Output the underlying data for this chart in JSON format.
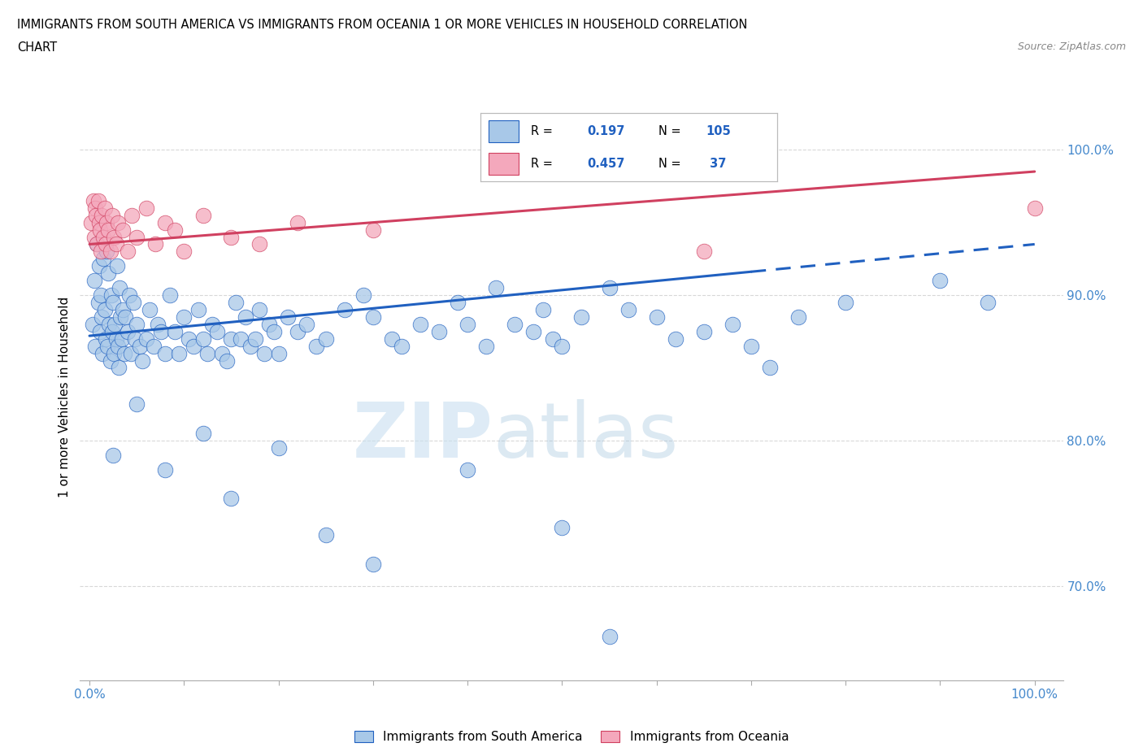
{
  "title_line1": "IMMIGRANTS FROM SOUTH AMERICA VS IMMIGRANTS FROM OCEANIA 1 OR MORE VEHICLES IN HOUSEHOLD CORRELATION",
  "title_line2": "CHART",
  "source": "Source: ZipAtlas.com",
  "ylabel": "1 or more Vehicles in Household",
  "xlim": [
    -1.0,
    103.0
  ],
  "ylim": [
    63.5,
    102.5
  ],
  "yticks": [
    70.0,
    80.0,
    90.0,
    100.0
  ],
  "ytick_labels": [
    "70.0%",
    "80.0%",
    "90.0%",
    "100.0%"
  ],
  "xtick_labels_left": "0.0%",
  "xtick_labels_right": "100.0%",
  "legend_R_blue": "0.197",
  "legend_N_blue": "105",
  "legend_R_pink": "0.457",
  "legend_N_pink": " 37",
  "color_blue": "#a8c8e8",
  "color_pink": "#f4a8bc",
  "trendline_blue": "#2060c0",
  "trendline_pink": "#d04060",
  "watermark_zip": "ZIP",
  "watermark_atlas": "atlas",
  "blue_x": [
    0.3,
    0.5,
    0.6,
    0.8,
    0.9,
    1.0,
    1.1,
    1.2,
    1.3,
    1.4,
    1.5,
    1.6,
    1.7,
    1.8,
    1.9,
    2.0,
    2.1,
    2.2,
    2.3,
    2.4,
    2.5,
    2.6,
    2.7,
    2.8,
    2.9,
    3.0,
    3.1,
    3.2,
    3.3,
    3.4,
    3.5,
    3.7,
    3.8,
    4.0,
    4.2,
    4.4,
    4.6,
    4.8,
    5.0,
    5.3,
    5.6,
    6.0,
    6.4,
    6.8,
    7.2,
    7.6,
    8.0,
    8.5,
    9.0,
    9.5,
    10.0,
    10.5,
    11.0,
    11.5,
    12.0,
    12.5,
    13.0,
    13.5,
    14.0,
    14.5,
    15.0,
    15.5,
    16.0,
    16.5,
    17.0,
    17.5,
    18.0,
    18.5,
    19.0,
    19.5,
    20.0,
    21.0,
    22.0,
    23.0,
    24.0,
    25.0,
    27.0,
    29.0,
    30.0,
    32.0,
    33.0,
    35.0,
    37.0,
    39.0,
    40.0,
    42.0,
    43.0,
    45.0,
    47.0,
    48.0,
    49.0,
    50.0,
    52.0,
    55.0,
    57.0,
    60.0,
    62.0,
    65.0,
    68.0,
    70.0,
    72.0,
    75.0,
    80.0,
    90.0,
    95.0
  ],
  "blue_y": [
    88.0,
    91.0,
    86.5,
    93.5,
    89.5,
    92.0,
    87.5,
    90.0,
    88.5,
    86.0,
    92.5,
    89.0,
    87.0,
    93.0,
    86.5,
    91.5,
    88.0,
    85.5,
    90.0,
    87.5,
    89.5,
    86.0,
    88.0,
    87.0,
    92.0,
    86.5,
    85.0,
    90.5,
    88.5,
    87.0,
    89.0,
    86.0,
    88.5,
    87.5,
    90.0,
    86.0,
    89.5,
    87.0,
    88.0,
    86.5,
    85.5,
    87.0,
    89.0,
    86.5,
    88.0,
    87.5,
    86.0,
    90.0,
    87.5,
    86.0,
    88.5,
    87.0,
    86.5,
    89.0,
    87.0,
    86.0,
    88.0,
    87.5,
    86.0,
    85.5,
    87.0,
    89.5,
    87.0,
    88.5,
    86.5,
    87.0,
    89.0,
    86.0,
    88.0,
    87.5,
    86.0,
    88.5,
    87.5,
    88.0,
    86.5,
    87.0,
    89.0,
    90.0,
    88.5,
    87.0,
    86.5,
    88.0,
    87.5,
    89.5,
    88.0,
    86.5,
    90.5,
    88.0,
    87.5,
    89.0,
    87.0,
    86.5,
    88.5,
    90.5,
    89.0,
    88.5,
    87.0,
    87.5,
    88.0,
    86.5,
    85.0,
    88.5,
    89.5,
    91.0,
    89.5
  ],
  "blue_low_x": [
    2.5,
    5.0,
    8.0,
    12.0,
    15.0,
    20.0,
    25.0,
    30.0,
    40.0,
    50.0,
    55.0
  ],
  "blue_low_y": [
    79.0,
    82.5,
    78.0,
    80.5,
    76.0,
    79.5,
    73.5,
    71.5,
    78.0,
    74.0,
    66.5
  ],
  "pink_x": [
    0.2,
    0.4,
    0.5,
    0.6,
    0.7,
    0.8,
    0.9,
    1.0,
    1.1,
    1.2,
    1.3,
    1.5,
    1.6,
    1.7,
    1.8,
    2.0,
    2.2,
    2.4,
    2.6,
    2.8,
    3.0,
    3.5,
    4.0,
    4.5,
    5.0,
    6.0,
    7.0,
    8.0,
    9.0,
    10.0,
    12.0,
    15.0,
    18.0,
    22.0,
    30.0,
    65.0,
    100.0
  ],
  "pink_y": [
    95.0,
    96.5,
    94.0,
    96.0,
    95.5,
    93.5,
    96.5,
    95.0,
    94.5,
    93.0,
    95.5,
    94.0,
    96.0,
    93.5,
    95.0,
    94.5,
    93.0,
    95.5,
    94.0,
    93.5,
    95.0,
    94.5,
    93.0,
    95.5,
    94.0,
    96.0,
    93.5,
    95.0,
    94.5,
    93.0,
    95.5,
    94.0,
    93.5,
    95.0,
    94.5,
    93.0,
    96.0
  ],
  "trend_blue_x0": 0,
  "trend_blue_x1": 100,
  "trend_blue_y0": 87.2,
  "trend_blue_y1": 93.5,
  "trend_blue_solid_end": 70,
  "trend_pink_x0": 0,
  "trend_pink_x1": 100,
  "trend_pink_y0": 93.5,
  "trend_pink_y1": 98.5,
  "grid_color": "#d8d8d8",
  "tick_color": "#4488cc"
}
